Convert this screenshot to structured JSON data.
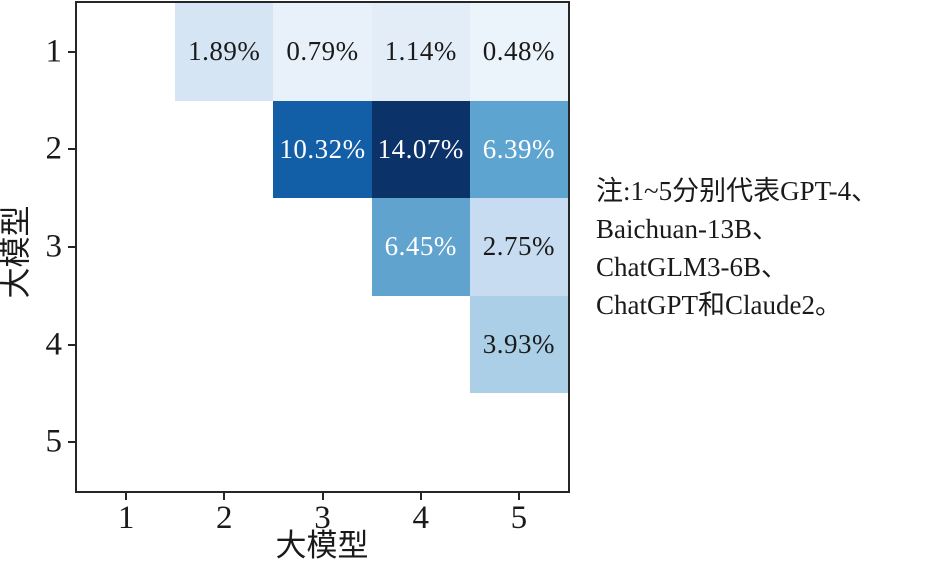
{
  "chart_data": {
    "type": "heatmap",
    "title": "",
    "xlabel": "大模型",
    "ylabel": "大模型",
    "x_ticks": [
      "1",
      "2",
      "3",
      "4",
      "5"
    ],
    "y_ticks": [
      "1",
      "2",
      "3",
      "4",
      "5"
    ],
    "x_range": [
      0.5,
      5.5
    ],
    "y_range": [
      0.5,
      5.5
    ],
    "grid": false,
    "colormap": "Blues",
    "cells": [
      {
        "row": 1,
        "col": 2,
        "value": 1.89,
        "label": "1.89%",
        "color": "#d5e5f4",
        "text_color": "#1a1a1a"
      },
      {
        "row": 1,
        "col": 3,
        "value": 0.79,
        "label": "0.79%",
        "color": "#e8f1f9",
        "text_color": "#1a1a1a"
      },
      {
        "row": 1,
        "col": 4,
        "value": 1.14,
        "label": "1.14%",
        "color": "#e2edf8",
        "text_color": "#1a1a1a"
      },
      {
        "row": 1,
        "col": 5,
        "value": 0.48,
        "label": "0.48%",
        "color": "#ecf4fb",
        "text_color": "#1a1a1a"
      },
      {
        "row": 2,
        "col": 3,
        "value": 10.32,
        "label": "10.32%",
        "color": "#135fa7",
        "text_color": "#ffffff"
      },
      {
        "row": 2,
        "col": 4,
        "value": 14.07,
        "label": "14.07%",
        "color": "#0b3269",
        "text_color": "#ffffff"
      },
      {
        "row": 2,
        "col": 5,
        "value": 6.39,
        "label": "6.39%",
        "color": "#5da4d0",
        "text_color": "#ffffff"
      },
      {
        "row": 3,
        "col": 4,
        "value": 6.45,
        "label": "6.45%",
        "color": "#60a3ce",
        "text_color": "#ffffff"
      },
      {
        "row": 3,
        "col": 5,
        "value": 2.75,
        "label": "2.75%",
        "color": "#c7dcf0",
        "text_color": "#1a1a1a"
      },
      {
        "row": 4,
        "col": 5,
        "value": 3.93,
        "label": "3.93%",
        "color": "#abcfe6",
        "text_color": "#1a1a1a"
      }
    ],
    "annotation": {
      "lines": [
        "注:1~5分别代表GPT-4、",
        "Baichuan-13B、",
        "ChatGLM3-6B、",
        "ChatGPT和Claude2。"
      ]
    }
  }
}
